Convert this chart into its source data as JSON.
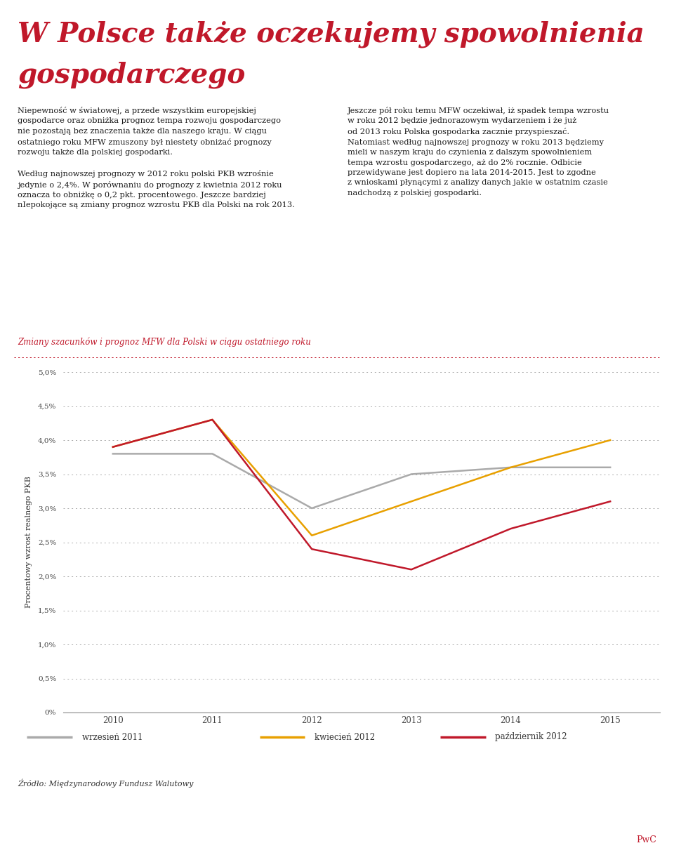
{
  "title_line1": "W Polsce także oczekujemy spowolnienia",
  "title_line2": "gospodarczego",
  "title_color": "#c0182a",
  "background_color": "#ffffff",
  "chart_section_title": "Zmiany szacunków i prognoz MFW dla Polski w ciągu ostatniego roku",
  "chart_section_title_color": "#c0182a",
  "ylabel": "Procentowy wzrost realnego PKB",
  "source_text": "Źródło: Międzynarodowy Fundusz Walutowy",
  "footer_text": "PwC",
  "x_values": [
    2010,
    2011,
    2012,
    2013,
    2014,
    2015
  ],
  "series_wrzesien": {
    "label": "wrzesień 2011",
    "color": "#aaaaaa",
    "values": [
      3.8,
      3.8,
      3.0,
      3.5,
      3.6,
      3.6
    ]
  },
  "series_kwiecien": {
    "label": "kwiecień 2012",
    "color": "#e8a000",
    "values": [
      3.9,
      4.3,
      2.6,
      3.1,
      3.6,
      4.0
    ]
  },
  "series_pazdziernik": {
    "label": "październik 2012",
    "color": "#c0182a",
    "values": [
      3.9,
      4.3,
      2.4,
      2.1,
      2.7,
      3.1
    ]
  },
  "ylim": [
    0.0,
    5.0
  ],
  "yticks": [
    0.0,
    0.5,
    1.0,
    1.5,
    2.0,
    2.5,
    3.0,
    3.5,
    4.0,
    4.5,
    5.0
  ],
  "ytick_labels": [
    "0%",
    "0,5%",
    "1,0%",
    "1,5%",
    "2,0%",
    "2,5%",
    "3,0%",
    "3,5%",
    "4,0%",
    "4,5%",
    "5,0%"
  ],
  "text_left_col": "Niepewność w światowej, a przede wszystkim europejskiej\ngospodarce oraz obniżka prognoz tempa rozwoju gospodarczego\nnie pozostają bez znaczenia także dla naszego kraju. W ciągu\nostatniego roku MFW zmuszony był niestety obniżać prognozy\nrozwoju także dla polskiej gospodarki.\n\nWedług najnowszej prognozy w 2012 roku polski PKB wzrośnie\njedynie o 2,4%. W porównaniu do prognozy z kwietnia 2012 roku\noznacza to obniżkę o 0,2 pkt. procentowego. Jeszcze bardziej\nnIepokojące są zmiany prognoz wzrostu PKB dla Polski na rok 2013.",
  "text_right_col": "Jeszcze pół roku temu MFW oczekiwał, iż spadek tempa wzrostu\nw roku 2012 będzie jednorazowym wydarzeniem i że już\nod 2013 roku Polska gospodarka zacznie przyspieszać.\nNatomiast według najnowszej prognozy w roku 2013 będziemy\nmieli w naszym kraju do czynienia z dalszym spowolnieniem\ntempa wzrostu gospodarczego, aż do 2% rocznie. Odbicie\nprzewidywane jest dopiero na lata 2014-2015. Jest to zgodne\nz wnioskami płynącymi z analizy danych jakie w ostatnim czasie\nnadchodzą z polskiej gospodarki."
}
